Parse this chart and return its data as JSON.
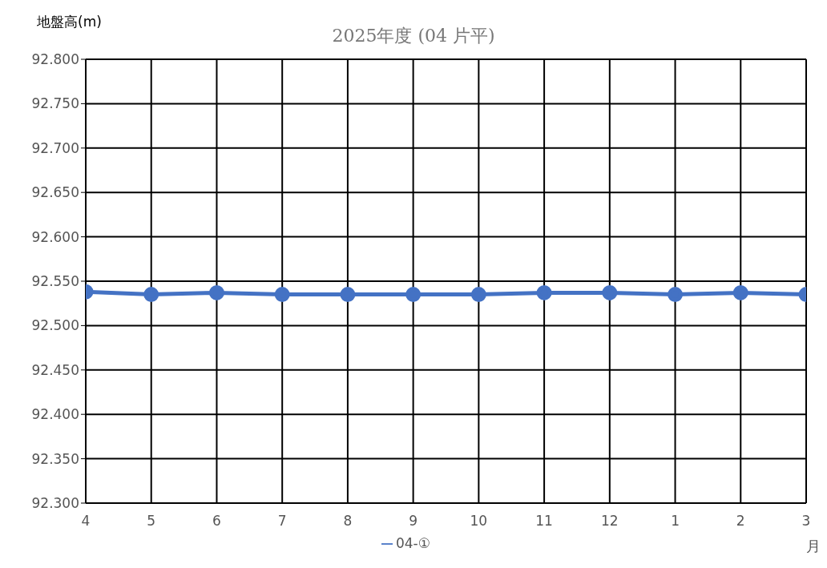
{
  "chart_data": {
    "type": "line",
    "title": "2025年度 (04 片平)",
    "ylabel": "地盤高(m)",
    "xlabel": "月",
    "categories": [
      "4",
      "5",
      "6",
      "7",
      "8",
      "9",
      "10",
      "11",
      "12",
      "1",
      "2",
      "3"
    ],
    "series": [
      {
        "name": "04-①",
        "color": "#4472c4",
        "values": [
          92.538,
          92.535,
          92.537,
          92.535,
          92.535,
          92.535,
          92.535,
          92.537,
          92.537,
          92.535,
          92.537,
          92.535
        ]
      }
    ],
    "ylim": [
      92.3,
      92.8
    ],
    "yticks": [
      {
        "value": 92.3,
        "label": "92.300"
      },
      {
        "value": 92.35,
        "label": "92.350"
      },
      {
        "value": 92.4,
        "label": "92.400"
      },
      {
        "value": 92.45,
        "label": "92.450"
      },
      {
        "value": 92.5,
        "label": "92.500"
      },
      {
        "value": 92.55,
        "label": "92.550"
      },
      {
        "value": 92.6,
        "label": "92.600"
      },
      {
        "value": 92.65,
        "label": "92.650"
      },
      {
        "value": 92.7,
        "label": "92.700"
      },
      {
        "value": 92.75,
        "label": "92.750"
      },
      {
        "value": 92.8,
        "label": "92.800"
      }
    ],
    "grid": true,
    "legend": "bottom",
    "marker": "circle",
    "line_style": "solid"
  }
}
